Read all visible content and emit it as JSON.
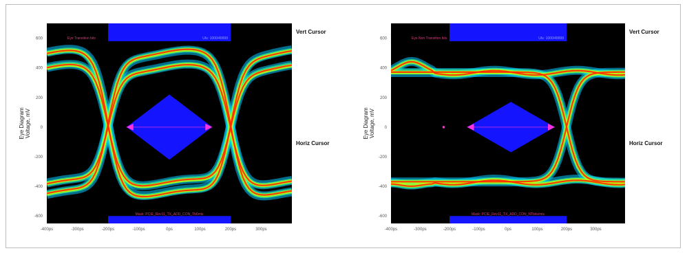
{
  "colors": {
    "background": "#000000",
    "mask": "#1414ff",
    "marker": "#ff33dd",
    "trace_low": "#00c8ff",
    "trace_mid": "#c8ff00",
    "trace_high": "#ff2a00"
  },
  "chart_data": [
    {
      "type": "eye-diagram",
      "title": "",
      "plot_label": "Eye Transition bits",
      "mask_label": "Mask: PCIE_Rev11_TX_ADD_CON_Tb6mls",
      "corner_label": "UIs: 1000/49999",
      "ylabel": "Eye Diagram\nVoltage, mV",
      "xlim": [
        -400,
        400
      ],
      "ylim": [
        -650,
        700
      ],
      "x_ticks": [
        "-400ps",
        "-300ps",
        "-200ps",
        "-100ps",
        "0ps",
        "100ps",
        "200ps",
        "300ps"
      ],
      "x_tick_values": [
        -400,
        -300,
        -200,
        -100,
        0,
        100,
        200,
        300
      ],
      "y_ticks": [
        "600",
        "400",
        "200",
        "0",
        "-200",
        "-400",
        "-600"
      ],
      "y_tick_values": [
        600,
        400,
        200,
        0,
        -200,
        -400,
        -600
      ],
      "crossings_ps": [
        -200,
        200
      ],
      "levels_mv": [
        {
          "high": 500,
          "low": -450
        },
        {
          "high": 400,
          "low": -380
        }
      ],
      "mask_diamond": {
        "x_min": -140,
        "x_max": 140,
        "y_min": -220,
        "y_max": 220
      },
      "vert_cursor_label": "Vert Cursor",
      "horiz_cursor_label": "Horiz Cursor"
    },
    {
      "type": "eye-diagram",
      "title": "",
      "plot_label": "Eye Non Transition bits",
      "mask_label": "Mask: PCIE_Rev11_TX_ADD_CON_NTbits/mls",
      "corner_label": "UIs: 1000/49999",
      "ylabel": "Eye Diagram\nVoltage, mV",
      "xlim": [
        -400,
        400
      ],
      "ylim": [
        -650,
        700
      ],
      "x_ticks": [
        "-400ps",
        "-300ps",
        "-200ps",
        "-100ps",
        "0ps",
        "100ps",
        "200ps",
        "300ps"
      ],
      "x_tick_values": [
        -400,
        -300,
        -200,
        -100,
        0,
        100,
        200,
        300
      ],
      "y_ticks": [
        "600",
        "400",
        "200",
        "0",
        "-200",
        "-400",
        "-600"
      ],
      "y_tick_values": [
        600,
        400,
        200,
        0,
        -200,
        -400,
        -600
      ],
      "crossings_ps": [
        200
      ],
      "levels_mv": [
        {
          "high": 370,
          "low": -370
        }
      ],
      "mask_diamond": {
        "x_min": -140,
        "x_max": 160,
        "y_min": -170,
        "y_max": 170
      },
      "vert_cursor_label": "Vert Cursor",
      "horiz_cursor_label": "Horiz Cursor"
    }
  ]
}
